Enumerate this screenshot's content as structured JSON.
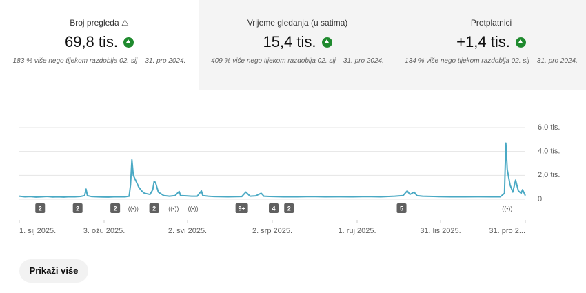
{
  "cards": [
    {
      "title": "Broj pregleda",
      "value": "69,8 tis.",
      "note": "183 % više nego tijekom razdoblja 02. sij – 31. pro 2024."
    },
    {
      "title": "Vrijeme gledanja (u satima)",
      "value": "15,4 tis.",
      "note": "409 % više nego tijekom razdoblja 02. sij – 31. pro 2024."
    },
    {
      "title": "Pretplatnici",
      "value": "+1,4 tis.",
      "note": "134 % više nego tijekom razdoblja 02. sij – 31. pro 2024."
    }
  ],
  "chart_data": {
    "type": "line",
    "color": "#4aa9c4",
    "grid": true,
    "x": [
      0,
      4,
      8,
      12,
      16,
      20,
      24,
      28,
      32,
      36,
      40,
      44,
      47,
      48,
      49,
      52,
      56,
      60,
      64,
      68,
      72,
      76,
      79,
      80,
      81,
      82,
      84,
      86,
      88,
      90,
      94,
      96,
      97,
      98,
      100,
      104,
      108,
      112,
      115,
      116,
      120,
      124,
      128,
      131,
      132,
      136,
      140,
      150,
      160,
      163,
      166,
      170,
      174,
      176,
      180,
      190,
      200,
      210,
      220,
      230,
      240,
      250,
      260,
      270,
      276,
      279,
      281,
      284,
      286,
      290,
      300,
      310,
      320,
      330,
      340,
      346,
      349,
      350,
      351,
      353,
      355,
      357,
      359,
      361,
      362,
      364
    ],
    "values": [
      250,
      200,
      220,
      180,
      200,
      230,
      190,
      200,
      180,
      210,
      200,
      230,
      300,
      850,
      300,
      220,
      200,
      190,
      180,
      200,
      210,
      200,
      250,
      1200,
      3300,
      2000,
      1500,
      1000,
      700,
      500,
      400,
      800,
      1500,
      1400,
      600,
      300,
      250,
      300,
      650,
      300,
      280,
      250,
      250,
      700,
      300,
      250,
      220,
      200,
      220,
      600,
      250,
      280,
      500,
      250,
      230,
      200,
      200,
      220,
      200,
      210,
      200,
      220,
      200,
      250,
      300,
      700,
      400,
      600,
      300,
      250,
      220,
      200,
      200,
      210,
      200,
      200,
      500,
      4700,
      2500,
      1200,
      600,
      1600,
      700,
      500,
      800,
      300
    ],
    "xlim": [
      0,
      364
    ],
    "xticks": [
      {
        "value": 0,
        "label": "1. sij 2025."
      },
      {
        "value": 61,
        "label": "3. ožu 2025."
      },
      {
        "value": 121,
        "label": "2. svi 2025."
      },
      {
        "value": 182,
        "label": "2. srp 2025."
      },
      {
        "value": 243,
        "label": "1. ruj 2025."
      },
      {
        "value": 303,
        "label": "31. lis 2025."
      },
      {
        "value": 364,
        "label": "31. pro 2..."
      }
    ],
    "ylim": [
      0,
      6000
    ],
    "yticks": [
      0,
      {
        "value": 2000,
        "label": "2,0 tis."
      },
      {
        "value": 4000,
        "label": "4,0 tis."
      },
      {
        "value": 6000,
        "label": "6,0 tis."
      }
    ],
    "annotations": [
      {
        "x": 15,
        "label": "2"
      },
      {
        "x": 42,
        "label": "2"
      },
      {
        "x": 69,
        "label": "2"
      },
      {
        "x": 82,
        "label": "((•))"
      },
      {
        "x": 97,
        "label": "2"
      },
      {
        "x": 111,
        "label": "((•))"
      },
      {
        "x": 125,
        "label": "((•))"
      },
      {
        "x": 160,
        "label": "9+"
      },
      {
        "x": 183,
        "label": "4"
      },
      {
        "x": 194,
        "label": "2"
      },
      {
        "x": 275,
        "label": "5"
      },
      {
        "x": 351,
        "label": "((•))"
      }
    ]
  },
  "button": "Prikaži više"
}
